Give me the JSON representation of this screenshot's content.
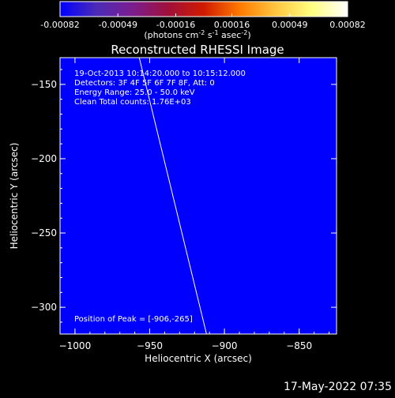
{
  "title": "Reconstructed RHESSI Image",
  "colorbar": {
    "ticks": [
      "-0.00082",
      "-0.00049",
      "-0.00016",
      "0.00016",
      "0.00049",
      "0.00082"
    ],
    "tick_values": [
      -0.00082,
      -0.00049,
      -0.00016,
      0.00016,
      0.00049,
      0.00082
    ],
    "range": [
      -0.00082,
      0.00082
    ],
    "unit_main": "(photons cm",
    "unit_exp1": "-2",
    "unit_mid1": " s",
    "unit_exp2": "-1",
    "unit_mid2": " asec",
    "unit_exp3": "-2",
    "unit_end": ")",
    "colormap": [
      "#0000ff",
      "#4b2bb8",
      "#7a1e8f",
      "#a0103a",
      "#d01a00",
      "#ff7a00",
      "#ffc640",
      "#ffff80",
      "#ffffff"
    ]
  },
  "annotations": {
    "line1": "19-Oct-2013 10:14:20.000 to 10:15:12.000",
    "line2": "Detectors: 3F 4F 5F 6F 7F 8F, Att: 0",
    "line3": "Energy Range: 25.0 - 50.0 keV",
    "line4": "Clean     Total counts: 1.76E+03",
    "peak": "Position of Peak = [-906,-265]"
  },
  "footer_date": "17-May-2022 07:35",
  "chart_data": {
    "type": "heatmap",
    "title": "Reconstructed RHESSI Image",
    "xlabel": "Heliocentric X (arcsec)",
    "ylabel": "Heliocentric Y (arcsec)",
    "xlim": [
      -1010,
      -825
    ],
    "ylim": [
      -318,
      -132
    ],
    "x_ticks": [
      -1000,
      -950,
      -900,
      -850
    ],
    "y_ticks": [
      -150,
      -200,
      -250,
      -300
    ],
    "x_tick_labels": [
      "−1000",
      "−950",
      "−900",
      "−850"
    ],
    "y_tick_labels": [
      "−150",
      "−200",
      "−250",
      "−300"
    ],
    "peak_position": [
      -906,
      -265
    ],
    "limb_line": [
      [
        -957,
        -132
      ],
      [
        -912,
        -318
      ]
    ],
    "grid_cols": 30,
    "grid_rows": 30,
    "grid": [
      "000000000000000000000000000000",
      "000000000000000000000000000000",
      "000000000000000000000000000000",
      "000000000000000000000000000000",
      "000000000000000000000000000000",
      "000000000000000000000000000000",
      "000000000000000000000000000000",
      "000000000000000000000000000000",
      "000000000000000000000000000000",
      "000000000000000000000000000000",
      "000000000000000000000000000000",
      "000000000000000000000000000000",
      "000000000000000000000000000000",
      "000000000000000000000000000000",
      "000000000000000000000000000000",
      "000000000000000000000000000000",
      "000000000000000000000000000000",
      "000000000000000000000000000000",
      "000000000000000000000000000000",
      "000000000000000000000000000000",
      "000000000000000000000000000000",
      "000000000000000000000000000000",
      "000000000000000000000000000000",
      "000000000000000000000000000000",
      "000000000000000000000000000000",
      "000000000000000000000000000000",
      "000000000000000000000000000000",
      "000000000000000000000000000000",
      "000000000000000000000000000000",
      "000000000000000000000000000000"
    ]
  }
}
